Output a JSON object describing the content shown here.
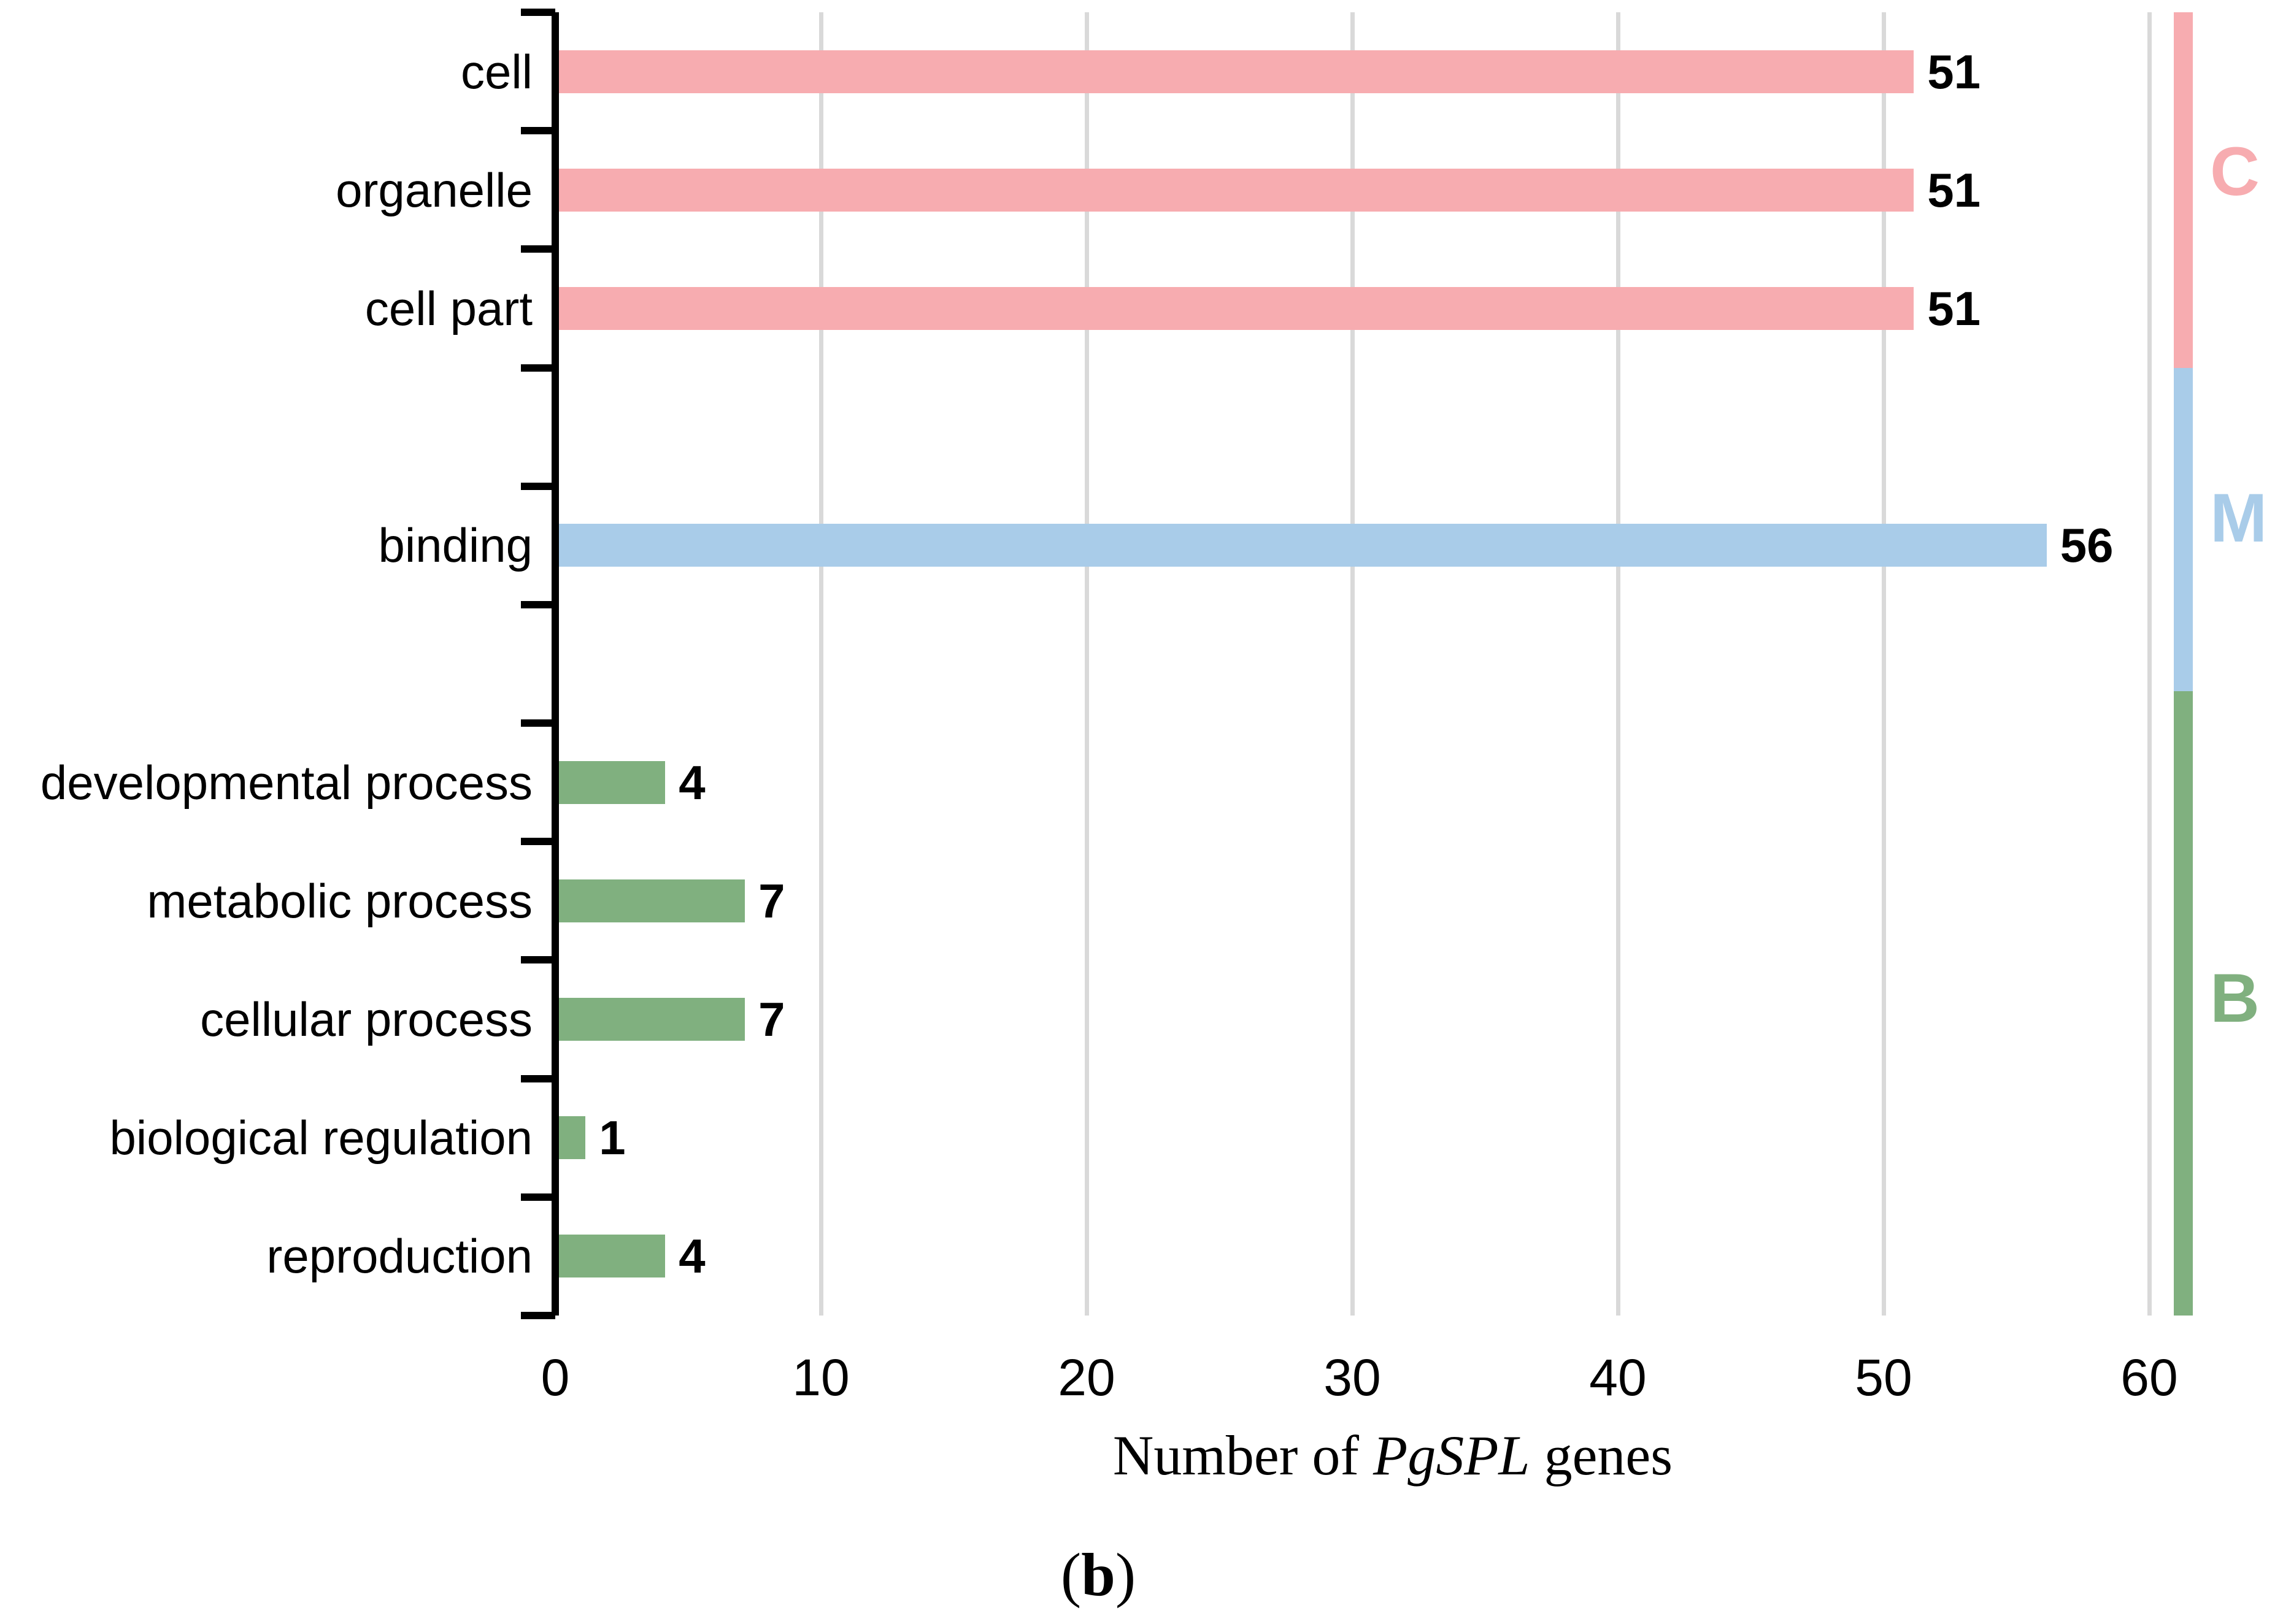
{
  "chart_data": {
    "type": "bar",
    "orientation": "horizontal",
    "title": "",
    "xlabel": "Number of PgSPL genes",
    "xlabel_parts": {
      "prefix": "Number of ",
      "italic": "PgSPL",
      "suffix": " genes"
    },
    "caption": {
      "open": "(",
      "bold": "b",
      "close": ")"
    },
    "xlim": [
      0,
      62
    ],
    "xticks": [
      0,
      10,
      20,
      30,
      40,
      50,
      60
    ],
    "grid": "vertical",
    "n_rows": 11,
    "rows": [
      {
        "row": 0,
        "label": "cell",
        "value": 51,
        "group": "C"
      },
      {
        "row": 1,
        "label": "organelle",
        "value": 51,
        "group": "C"
      },
      {
        "row": 2,
        "label": "cell part",
        "value": 51,
        "group": "C"
      },
      {
        "row": 4,
        "label": "binding",
        "value": 56,
        "group": "M"
      },
      {
        "row": 6,
        "label": "developmental process",
        "value": 4,
        "group": "B"
      },
      {
        "row": 7,
        "label": "metabolic process",
        "value": 7,
        "group": "B"
      },
      {
        "row": 8,
        "label": "cellular process",
        "value": 7,
        "group": "B"
      },
      {
        "row": 9,
        "label": "biological regulation",
        "value": 1,
        "group": "B"
      },
      {
        "row": 10,
        "label": "reproduction",
        "value": 4,
        "group": "B"
      }
    ],
    "groups": [
      {
        "letter": "C",
        "color": "#F7ACB0"
      },
      {
        "letter": "M",
        "color": "#A9CCE9"
      },
      {
        "letter": "B",
        "color": "#80B07F"
      }
    ],
    "legend_position": "right-strip"
  },
  "colors": {
    "background": "#FFFFFF",
    "gridline": "#D9D9D9",
    "axis": "#000000",
    "text": "#000000",
    "bar_pink": "#F7ACB0",
    "bar_blue": "#A9CCE9",
    "bar_green": "#80B07F"
  }
}
